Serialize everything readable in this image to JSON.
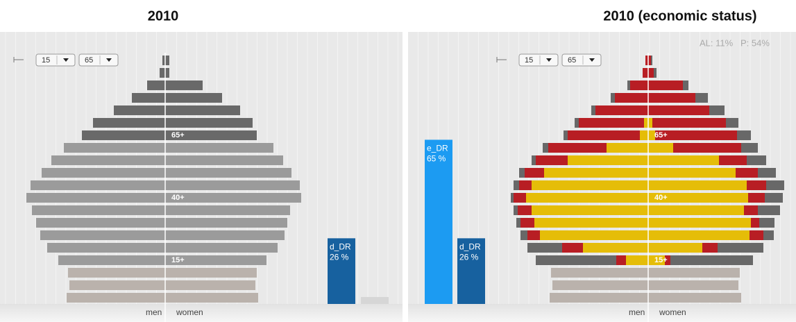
{
  "chart_data": [
    {
      "type": "pyramid",
      "title": "2010",
      "controls": [
        "15",
        "65"
      ],
      "age_labels": [
        "65+",
        "40+",
        "15+"
      ],
      "left_label": "men",
      "right_label": "women",
      "men_series": [
        {
          "color": "#bab2ac",
          "values": [
            142,
            138,
            140,
            null,
            null,
            null,
            null,
            null,
            null,
            null,
            null,
            null,
            null,
            null,
            null,
            null,
            null,
            null,
            null,
            null
          ]
        },
        {
          "color": "#9b9b9b",
          "values": [
            null,
            null,
            null,
            154,
            170,
            180,
            186,
            192,
            200,
            194,
            178,
            164,
            146,
            null,
            null,
            null,
            null,
            null,
            null,
            null
          ]
        },
        {
          "color": "#696969",
          "values": [
            null,
            null,
            null,
            null,
            null,
            null,
            null,
            null,
            null,
            null,
            null,
            null,
            null,
            120,
            104,
            74,
            48,
            26,
            8,
            4
          ]
        }
      ],
      "women_series": [
        {
          "color": "#bab2ac",
          "values": [
            134,
            130,
            132,
            null,
            null,
            null,
            null,
            null,
            null,
            null,
            null,
            null,
            null,
            null,
            null,
            null,
            null,
            null,
            null,
            null
          ]
        },
        {
          "color": "#9b9b9b",
          "values": [
            null,
            null,
            null,
            146,
            162,
            172,
            176,
            180,
            196,
            194,
            182,
            170,
            156,
            null,
            null,
            null,
            null,
            null,
            null,
            null
          ]
        },
        {
          "color": "#696969",
          "values": [
            null,
            null,
            null,
            null,
            null,
            null,
            null,
            null,
            null,
            null,
            null,
            null,
            null,
            132,
            126,
            108,
            82,
            54,
            6,
            6
          ]
        }
      ],
      "dependency_bars": [
        {
          "name": "d_DR",
          "value": 26,
          "value_label": "26 %",
          "color": "#17619f"
        }
      ]
    },
    {
      "type": "pyramid",
      "title": "2010 (economic status)",
      "controls": [
        "15",
        "65"
      ],
      "status": [
        "AL: 11%",
        "P: 54%"
      ],
      "age_labels": [
        "65+",
        "40+",
        "15+"
      ],
      "left_label": "men",
      "right_label": "women",
      "men_series": [
        {
          "color": "#bab2ac",
          "values": [
            142,
            138,
            140,
            null,
            null,
            null,
            null,
            null,
            null,
            null,
            null,
            null,
            null,
            null,
            null,
            null,
            null,
            null,
            null,
            null
          ]
        },
        {
          "color": "#e5bd08",
          "values": [
            null,
            null,
            null,
            32,
            94,
            156,
            164,
            168,
            176,
            168,
            150,
            116,
            60,
            12,
            6,
            null,
            null,
            null,
            null,
            null
          ]
        },
        {
          "color": "#b81e24",
          "values": [
            null,
            null,
            null,
            14,
            30,
            18,
            20,
            20,
            18,
            18,
            28,
            46,
            84,
            104,
            94,
            76,
            48,
            26,
            8,
            4
          ]
        },
        {
          "color": "#686868",
          "values": [
            null,
            null,
            null,
            116,
            50,
            10,
            6,
            6,
            4,
            8,
            8,
            6,
            8,
            6,
            6,
            6,
            6,
            4,
            null,
            null
          ]
        }
      ],
      "women_series": [
        {
          "color": "#bab2ac",
          "values": [
            134,
            130,
            132,
            null,
            null,
            null,
            null,
            null,
            null,
            null,
            null,
            null,
            null,
            null,
            null,
            null,
            null,
            null,
            null,
            null
          ]
        },
        {
          "color": "#e5bd08",
          "values": [
            null,
            null,
            null,
            24,
            78,
            146,
            148,
            138,
            144,
            142,
            126,
            102,
            36,
            10,
            6,
            null,
            null,
            null,
            null,
            null
          ]
        },
        {
          "color": "#b81e24",
          "values": [
            null,
            null,
            null,
            8,
            22,
            20,
            12,
            20,
            24,
            28,
            32,
            40,
            98,
            118,
            106,
            88,
            68,
            50,
            8,
            4
          ]
        },
        {
          "color": "#686868",
          "values": [
            null,
            null,
            null,
            119,
            66,
            15,
            22,
            32,
            26,
            26,
            26,
            28,
            24,
            20,
            18,
            22,
            18,
            8,
            4,
            2
          ]
        }
      ],
      "dependency_bars": [
        {
          "name": "e_DR",
          "value": 65,
          "value_label": "65 %",
          "color": "#1c9bf2"
        },
        {
          "name": "d_DR",
          "value": 26,
          "value_label": "26 %",
          "color": "#17619f"
        }
      ]
    }
  ]
}
